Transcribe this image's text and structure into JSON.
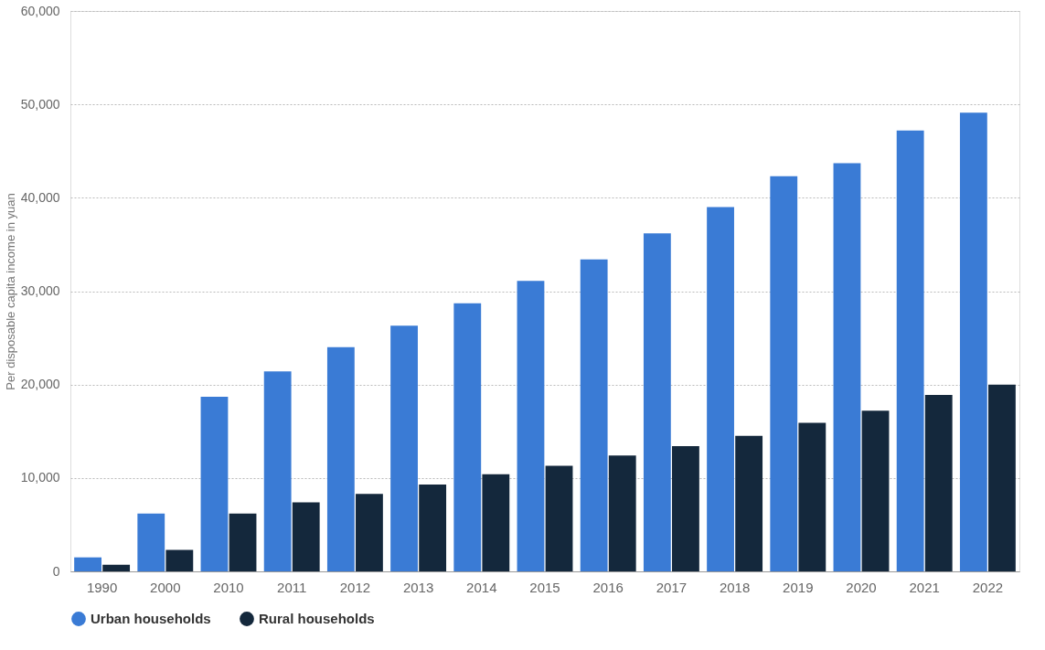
{
  "chart_data": {
    "type": "bar",
    "ylabel": "Per disposable capita income in yuan",
    "categories": [
      "1990",
      "2000",
      "2010",
      "2011",
      "2012",
      "2013",
      "2014",
      "2015",
      "2016",
      "2017",
      "2018",
      "2019",
      "2020",
      "2021",
      "2022"
    ],
    "series": [
      {
        "name": "Urban households",
        "color": "#3a7bd5",
        "values": [
          1500,
          6200,
          18700,
          21400,
          24000,
          26300,
          28700,
          31100,
          33400,
          36200,
          39000,
          42300,
          43700,
          47200,
          49100
        ]
      },
      {
        "name": "Rural households",
        "color": "#14283c",
        "values": [
          700,
          2300,
          6200,
          7400,
          8300,
          9300,
          10400,
          11300,
          12400,
          13400,
          14500,
          15900,
          17200,
          18900,
          20000
        ]
      }
    ],
    "ylim": [
      0,
      60000
    ],
    "yticks": [
      0,
      {
        "value": 10000,
        "label": "10,000"
      },
      {
        "value": 20000,
        "label": "20,000"
      },
      {
        "value": 30000,
        "label": "30,000"
      },
      {
        "value": 40000,
        "label": "40,000"
      },
      {
        "value": 50000,
        "label": "50,000"
      },
      {
        "value": 60000,
        "label": "60,000"
      }
    ],
    "grid": "y",
    "legend": "bottom"
  }
}
